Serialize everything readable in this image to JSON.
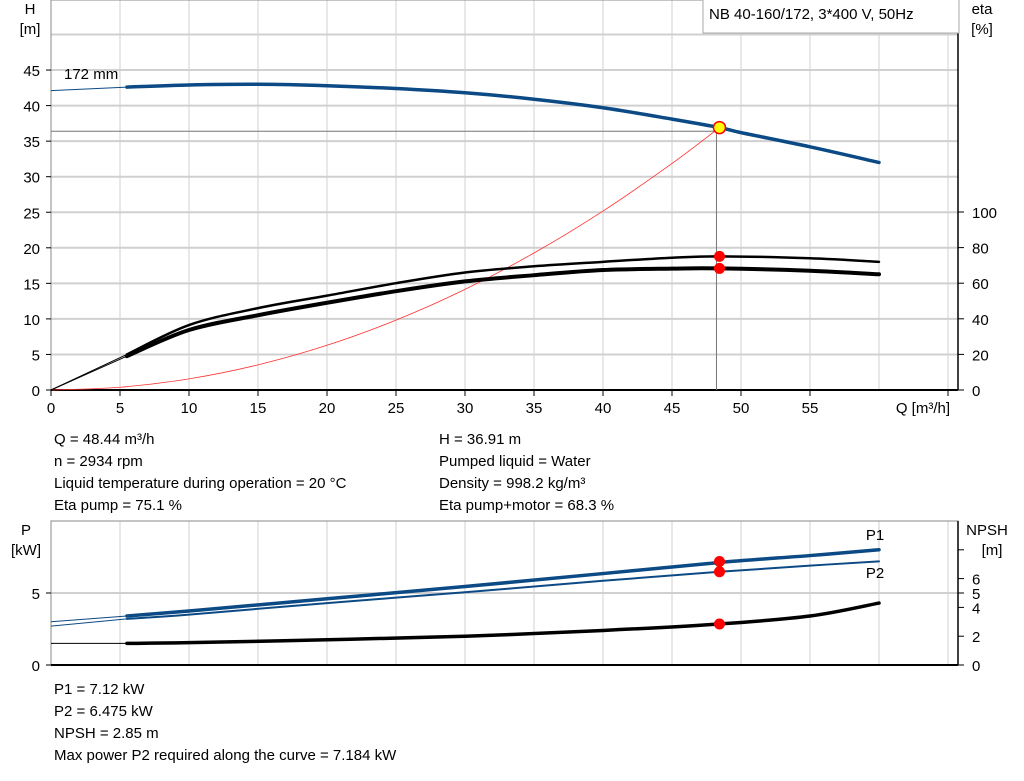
{
  "title_box": "NB 40-160/172, 3*400 V, 50Hz",
  "colors": {
    "head_curve": "#0c4a85",
    "eta_curves": "#000000",
    "system_curve": "#ff3030",
    "operating_point": "#ffff00",
    "marker": "#ff0000",
    "power_curves": "#0c4a85",
    "npsh_curve": "#000000",
    "grid": "#d0d0d0"
  },
  "chart_data": [
    {
      "type": "line",
      "title": "",
      "xlabel": "Q [m³/h]",
      "ylabel": "H [m]",
      "ylabel_name": "H",
      "ylabel_unit": "[m]",
      "y2label_name": "eta",
      "y2label_unit": "[%]",
      "xlim": [
        0,
        65
      ],
      "ylim": [
        0,
        50
      ],
      "y2lim": [
        0,
        220
      ],
      "xticks": [
        0,
        5,
        10,
        15,
        20,
        25,
        30,
        35,
        40,
        45,
        50,
        55
      ],
      "yticks": [
        0,
        5,
        10,
        15,
        20,
        25,
        30,
        35,
        40,
        45
      ],
      "y2ticks": [
        0,
        20,
        40,
        60,
        80,
        100
      ],
      "grid": true,
      "curve_label": "172 mm",
      "series": [
        {
          "key": "H",
          "axis": "left",
          "x": [
            0,
            5.5,
            10,
            15,
            20,
            25,
            30,
            35,
            40,
            45,
            48.44,
            50,
            55,
            60
          ],
          "y": [
            42.1,
            42.6,
            42.9,
            43.0,
            42.8,
            42.4,
            41.8,
            40.9,
            39.7,
            38.1,
            36.91,
            36.2,
            34.2,
            32.0
          ]
        },
        {
          "key": "eta_pump",
          "axis": "right",
          "x": [
            0,
            5.5,
            10,
            15,
            20,
            25,
            30,
            35,
            40,
            45,
            48.44,
            55,
            60
          ],
          "y": [
            0,
            20,
            36.5,
            46,
            53,
            60,
            66,
            69.5,
            72,
            74.3,
            75.1,
            74,
            72
          ]
        },
        {
          "key": "eta_pump_motor",
          "axis": "right",
          "x": [
            0,
            5.5,
            10,
            15,
            20,
            25,
            30,
            35,
            40,
            45,
            48.44,
            55,
            60
          ],
          "y": [
            0,
            19,
            33.7,
            42,
            49,
            55.5,
            61,
            64.5,
            67.4,
            68.2,
            68.3,
            67,
            65
          ]
        },
        {
          "key": "system",
          "axis": "left",
          "x": [
            0,
            5,
            10,
            15,
            20,
            25,
            30,
            35,
            40,
            45,
            48.44
          ],
          "y": [
            0,
            0.39,
            1.57,
            3.54,
            6.29,
            9.83,
            14.15,
            19.27,
            25.17,
            31.86,
            36.91
          ]
        }
      ],
      "operating_point": {
        "Q": 48.44,
        "H": 36.91,
        "eta_pump": 75.1,
        "eta_pump_motor": 68.3
      }
    },
    {
      "type": "line",
      "title": "",
      "ylabel_name": "P",
      "ylabel_unit": "[kW]",
      "y2label_name": "NPSH",
      "y2label_unit": "[m]",
      "xlim": [
        0,
        65
      ],
      "ylim": [
        0,
        10
      ],
      "y2lim": [
        0,
        10
      ],
      "yticks": [
        0,
        5
      ],
      "y2ticks": [
        0,
        2,
        4,
        5,
        6
      ],
      "y2ticks_unlabeled": [
        8
      ],
      "grid": true,
      "series": [
        {
          "key": "P1",
          "name": "P1",
          "axis": "left",
          "x": [
            0,
            5.5,
            10,
            20,
            30,
            40,
            48.44,
            55,
            60
          ],
          "y": [
            3.0,
            3.4,
            3.75,
            4.6,
            5.45,
            6.35,
            7.12,
            7.6,
            8.0
          ]
        },
        {
          "key": "P2",
          "name": "P2",
          "axis": "left",
          "x": [
            0,
            5.5,
            10,
            20,
            30,
            40,
            48.44,
            55,
            60
          ],
          "y": [
            2.7,
            3.2,
            3.5,
            4.3,
            5.05,
            5.85,
            6.475,
            6.9,
            7.2
          ]
        },
        {
          "key": "NPSH",
          "axis": "right",
          "x": [
            0,
            5.5,
            10,
            20,
            30,
            40,
            48.44,
            55,
            60
          ],
          "y": [
            1.5,
            1.5,
            1.55,
            1.75,
            2.0,
            2.4,
            2.85,
            3.4,
            4.3
          ]
        }
      ],
      "operating_point": {
        "Q": 48.44,
        "P1": 7.12,
        "P2": 6.475,
        "NPSH": 2.85
      }
    }
  ],
  "info_top_left": [
    "Q = 48.44 m³/h",
    "n = 2934 rpm",
    "Liquid temperature during operation = 20 °C",
    "Eta pump = 75.1 %"
  ],
  "info_top_right": [
    "H = 36.91 m",
    "Pumped liquid = Water",
    "Density = 998.2 kg/m³",
    "Eta pump+motor = 68.3 %"
  ],
  "info_bottom": [
    "P1 = 7.12 kW",
    "P2 = 6.475 kW",
    "NPSH = 2.85 m",
    "Max power P2 required along the curve = 7.184 kW"
  ]
}
